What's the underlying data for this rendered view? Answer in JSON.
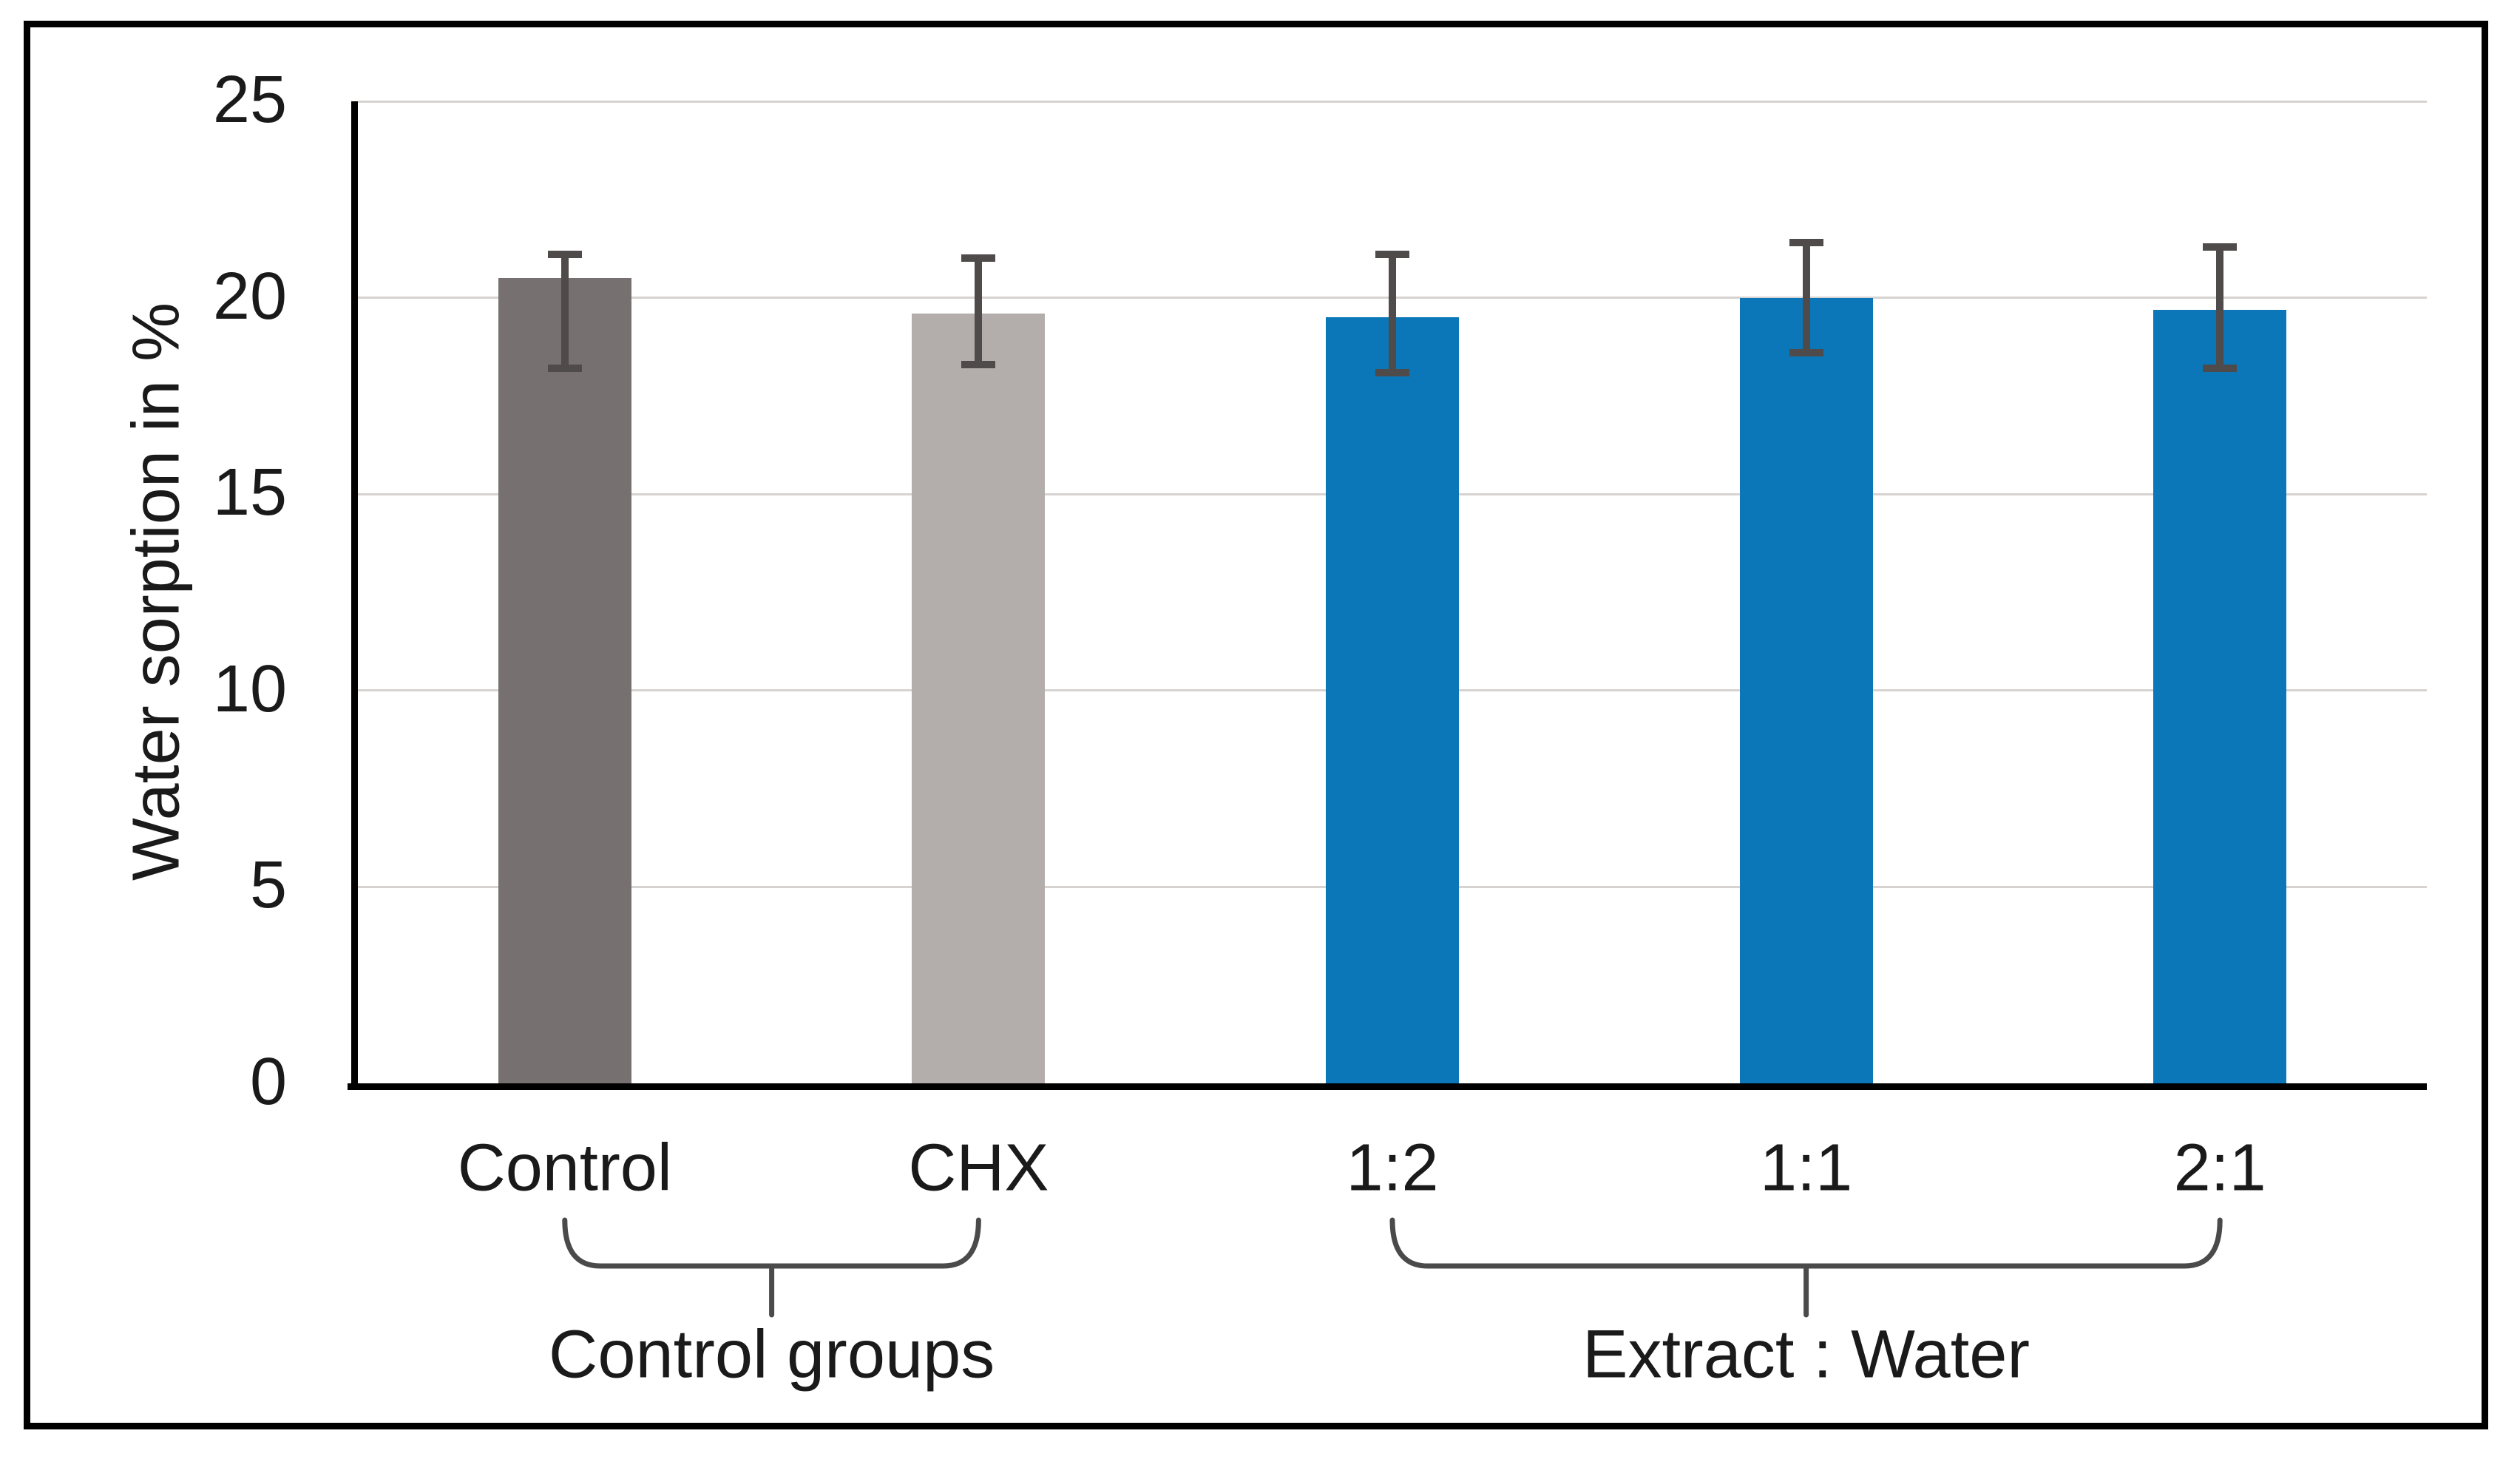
{
  "figure": {
    "background": "#ffffff",
    "border_color": "#000000"
  },
  "chart_data": {
    "type": "bar",
    "title": "",
    "xlabel": "",
    "ylabel": "Water sorption in %",
    "ylim": [
      0,
      25
    ],
    "yticks": [
      0,
      5,
      10,
      15,
      20,
      25
    ],
    "grid": true,
    "gridline_color": "#d6d3d1",
    "categories": [
      "Control",
      "CHX",
      "1:2",
      "1:1",
      "2:1"
    ],
    "values": [
      20.5,
      19.6,
      19.5,
      20.0,
      19.7
    ],
    "error_top": [
      21.1,
      21.0,
      21.1,
      21.4,
      21.3
    ],
    "error_bottom": [
      18.2,
      18.3,
      18.1,
      18.6,
      18.2
    ],
    "bar_colors": [
      "#767170",
      "#b3aeac",
      "#0b76b8",
      "#0b76b8",
      "#0b76b8"
    ],
    "error_color": "#4f4b4a",
    "legend": "none",
    "groups": [
      {
        "label": "Control groups",
        "start": 0,
        "end": 1
      },
      {
        "label": "Extract : Water",
        "start": 2,
        "end": 4
      }
    ]
  }
}
